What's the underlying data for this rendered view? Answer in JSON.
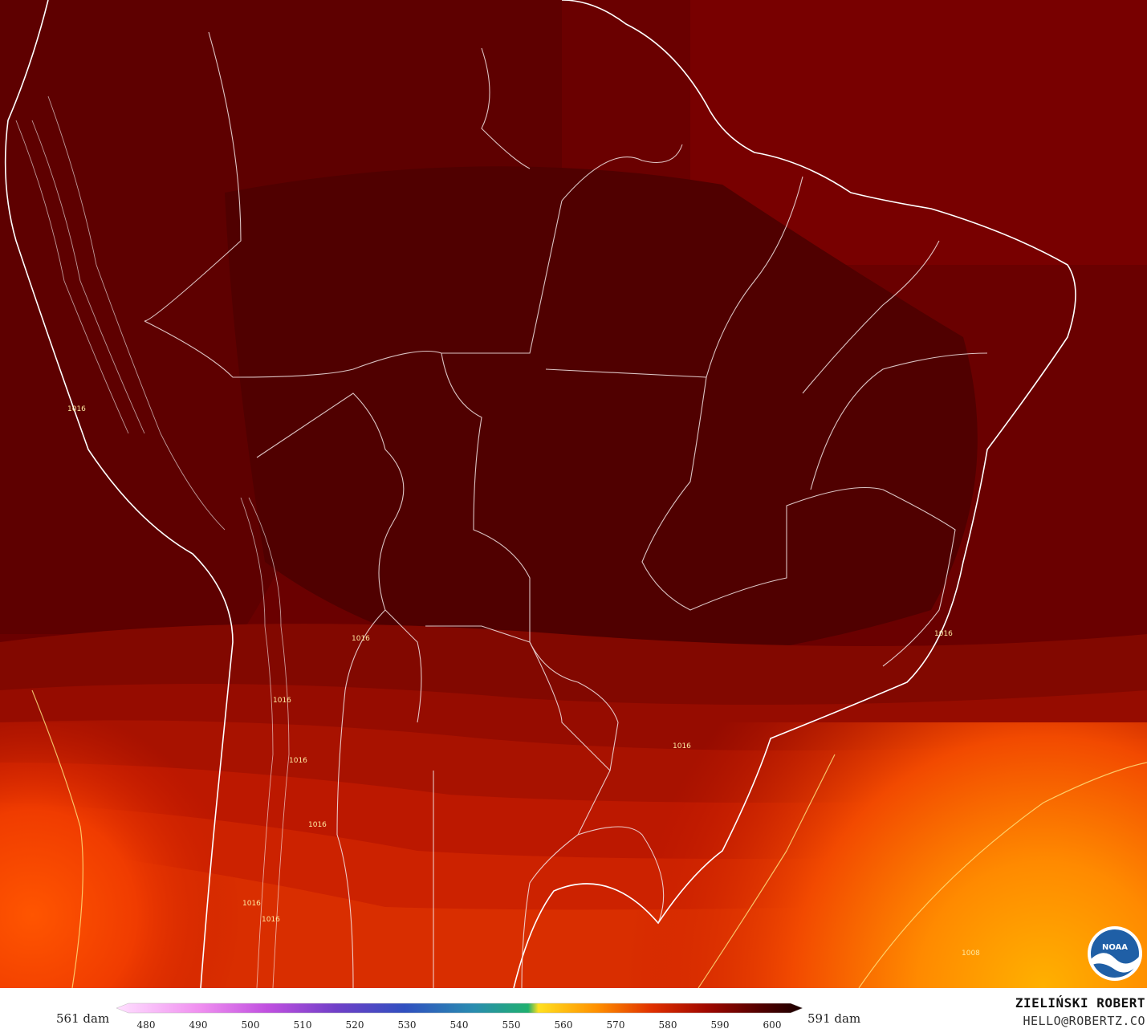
{
  "map": {
    "contour_labels": [
      "1016",
      "1016",
      "1016",
      "1016",
      "1016",
      "1016",
      "1016",
      "1016",
      "1016",
      "1008"
    ],
    "logo": "NOAA"
  },
  "legend": {
    "min_label": "561 dam",
    "max_label": "591 dam",
    "ticks": [
      "480",
      "490",
      "500",
      "510",
      "520",
      "530",
      "540",
      "550",
      "560",
      "570",
      "580",
      "590",
      "600"
    ]
  },
  "credit": {
    "author": "ZIELIŃSKI ROBERT",
    "email": "HELLO@ROBERTZ.CO"
  }
}
